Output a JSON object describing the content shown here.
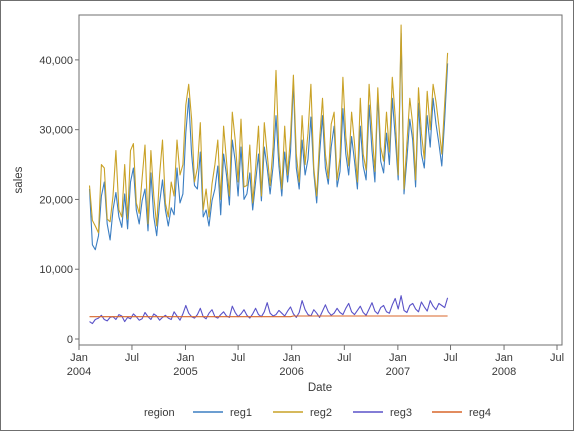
{
  "chart_data": {
    "type": "line",
    "xlabel": "Date",
    "ylabel": "sales",
    "ylim": [
      0,
      45000
    ],
    "grid": false,
    "legend": {
      "title": "region",
      "placement": "bottom"
    },
    "x_ticks": [
      {
        "date": "2004-01-01",
        "label": "Jan",
        "year": "2004"
      },
      {
        "date": "2004-07-01",
        "label": "Jul",
        "year": ""
      },
      {
        "date": "2005-01-01",
        "label": "Jan",
        "year": "2005"
      },
      {
        "date": "2005-07-01",
        "label": "Jul",
        "year": ""
      },
      {
        "date": "2006-01-01",
        "label": "Jan",
        "year": "2006"
      },
      {
        "date": "2006-07-01",
        "label": "Jul",
        "year": ""
      },
      {
        "date": "2007-01-01",
        "label": "Jan",
        "year": "2007"
      },
      {
        "date": "2007-07-01",
        "label": "Jul",
        "year": ""
      },
      {
        "date": "2008-01-01",
        "label": "Jan",
        "year": "2008"
      },
      {
        "date": "2008-07-01",
        "label": "Jul",
        "year": ""
      }
    ],
    "y_ticks": [
      {
        "value": 0,
        "label": "0"
      },
      {
        "value": 10000,
        "label": "10,000"
      },
      {
        "value": 20000,
        "label": "20,000"
      },
      {
        "value": 30000,
        "label": "30,000"
      },
      {
        "value": 40000,
        "label": "40,000"
      }
    ],
    "x": [
      "2004-02-06",
      "2004-02-16",
      "2004-02-26",
      "2004-03-08",
      "2004-03-18",
      "2004-03-28",
      "2004-04-07",
      "2004-04-17",
      "2004-04-27",
      "2004-05-07",
      "2004-05-17",
      "2004-05-27",
      "2004-06-06",
      "2004-06-16",
      "2004-06-26",
      "2004-07-06",
      "2004-07-16",
      "2004-07-26",
      "2004-08-05",
      "2004-08-15",
      "2004-08-25",
      "2004-09-04",
      "2004-09-14",
      "2004-09-24",
      "2004-10-04",
      "2004-10-14",
      "2004-10-24",
      "2004-11-03",
      "2004-11-13",
      "2004-11-23",
      "2004-12-03",
      "2004-12-13",
      "2004-12-23",
      "2005-01-02",
      "2005-01-12",
      "2005-01-22",
      "2005-02-01",
      "2005-02-11",
      "2005-02-21",
      "2005-03-03",
      "2005-03-13",
      "2005-03-23",
      "2005-04-02",
      "2005-04-12",
      "2005-04-22",
      "2005-05-02",
      "2005-05-12",
      "2005-05-22",
      "2005-06-01",
      "2005-06-11",
      "2005-06-21",
      "2005-07-01",
      "2005-07-11",
      "2005-07-21",
      "2005-07-31",
      "2005-08-10",
      "2005-08-20",
      "2005-08-30",
      "2005-09-09",
      "2005-09-19",
      "2005-09-29",
      "2005-10-09",
      "2005-10-19",
      "2005-10-29",
      "2005-11-08",
      "2005-11-18",
      "2005-11-28",
      "2005-12-08",
      "2005-12-18",
      "2005-12-28",
      "2006-01-07",
      "2006-01-17",
      "2006-01-27",
      "2006-02-06",
      "2006-02-16",
      "2006-02-26",
      "2006-03-08",
      "2006-03-18",
      "2006-03-28",
      "2006-04-07",
      "2006-04-17",
      "2006-04-27",
      "2006-05-07",
      "2006-05-17",
      "2006-05-27",
      "2006-06-06",
      "2006-06-16",
      "2006-06-26",
      "2006-07-06",
      "2006-07-16",
      "2006-07-26",
      "2006-08-05",
      "2006-08-15",
      "2006-08-25",
      "2006-09-04",
      "2006-09-14",
      "2006-09-24",
      "2006-10-04",
      "2006-10-14",
      "2006-10-24",
      "2006-11-03",
      "2006-11-13",
      "2006-11-23",
      "2006-12-03",
      "2006-12-13",
      "2006-12-23",
      "2007-01-02",
      "2007-01-12",
      "2007-01-22",
      "2007-02-01",
      "2007-02-11",
      "2007-02-21",
      "2007-03-03",
      "2007-03-13",
      "2007-03-23",
      "2007-04-02",
      "2007-04-12",
      "2007-04-22",
      "2007-05-02",
      "2007-05-12",
      "2007-05-22",
      "2007-06-01",
      "2007-06-11",
      "2007-06-21"
    ],
    "series": [
      {
        "name": "reg1",
        "color": "#3b7ec2",
        "values": [
          21500,
          13500,
          12800,
          14800,
          20500,
          22500,
          16500,
          14200,
          18500,
          21000,
          17500,
          16000,
          20800,
          15800,
          22500,
          24500,
          18500,
          16500,
          19800,
          21500,
          15500,
          23800,
          17500,
          14800,
          19500,
          22800,
          18500,
          16200,
          18800,
          17800,
          24500,
          19500,
          20800,
          29500,
          34500,
          26500,
          22000,
          21500,
          26800,
          17500,
          18500,
          16200,
          19800,
          21500,
          24800,
          17800,
          26500,
          23500,
          19200,
          28500,
          25500,
          20500,
          27500,
          20000,
          20800,
          23800,
          18500,
          22500,
          26500,
          19800,
          27500,
          24500,
          20800,
          24800,
          32000,
          24800,
          20500,
          26800,
          22500,
          26800,
          36800,
          24500,
          21500,
          28500,
          23500,
          25800,
          31800,
          23800,
          19500,
          26500,
          32000,
          24500,
          22200,
          27500,
          30500,
          21800,
          24000,
          33000,
          26500,
          23500,
          29000,
          25500,
          21500,
          30500,
          24800,
          22800,
          33500,
          27000,
          22500,
          35000,
          25500,
          23800,
          29500,
          25000,
          34500,
          29000,
          22800,
          43800,
          20800,
          25800,
          31500,
          28500,
          21800,
          33800,
          26500,
          24500,
          32000,
          27500,
          34500,
          30800,
          28000,
          24800,
          31500,
          39500
        ]
      },
      {
        "name": "reg2",
        "color": "#c9a227",
        "values": [
          22000,
          17000,
          16200,
          15200,
          25000,
          24500,
          17200,
          16800,
          20500,
          27000,
          18500,
          17500,
          25000,
          17200,
          27000,
          28000,
          19500,
          18000,
          23000,
          27800,
          16500,
          27000,
          20500,
          16200,
          23500,
          28500,
          19500,
          17500,
          22500,
          20500,
          28500,
          23500,
          25000,
          33500,
          36500,
          31500,
          22500,
          24500,
          31000,
          18500,
          21500,
          17500,
          22200,
          25000,
          28500,
          20000,
          30500,
          25500,
          20500,
          32500,
          28500,
          22500,
          31500,
          21800,
          22000,
          27800,
          19500,
          24500,
          30500,
          20500,
          31000,
          26500,
          22000,
          27500,
          38500,
          26800,
          21500,
          30500,
          23500,
          29000,
          37800,
          26500,
          22500,
          32000,
          25000,
          29500,
          36500,
          24500,
          20500,
          28500,
          34500,
          26500,
          23000,
          30800,
          32500,
          22800,
          26000,
          37500,
          29000,
          24800,
          32500,
          28000,
          22500,
          34500,
          26500,
          24200,
          36500,
          29800,
          24000,
          36000,
          27500,
          25500,
          32500,
          26800,
          37500,
          31800,
          23500,
          45000,
          21500,
          28000,
          34500,
          30800,
          22800,
          36000,
          29500,
          25800,
          35500,
          30000,
          36500,
          34000,
          30500,
          26500,
          33800,
          41000
        ]
      },
      {
        "name": "reg3",
        "color": "#5a52c8",
        "values": [
          2500,
          2200,
          2800,
          3000,
          3400,
          2800,
          2600,
          3100,
          3200,
          2800,
          3500,
          3300,
          2500,
          3100,
          2900,
          3600,
          3200,
          2700,
          2900,
          3800,
          3200,
          2800,
          3600,
          3300,
          2700,
          3100,
          3400,
          3000,
          2800,
          3900,
          3300,
          2700,
          3600,
          4800,
          3700,
          3200,
          3000,
          3500,
          4400,
          3200,
          2900,
          3700,
          4200,
          3200,
          3000,
          3500,
          3900,
          3300,
          3100,
          4700,
          3800,
          3200,
          3600,
          4200,
          3400,
          3000,
          3600,
          4400,
          3500,
          3200,
          3900,
          5200,
          3700,
          3300,
          3500,
          4100,
          3700,
          3300,
          4000,
          4600,
          3600,
          3100,
          3800,
          5500,
          4200,
          3500,
          3300,
          4200,
          3700,
          3100,
          4000,
          4900,
          3900,
          3400,
          3700,
          4400,
          3800,
          3500,
          4400,
          5100,
          3900,
          3500,
          4100,
          4700,
          3800,
          3400,
          4300,
          5200,
          4000,
          3600,
          4500,
          4800,
          3900,
          3700,
          4900,
          5800,
          4300,
          6200,
          4100,
          3800,
          4800,
          5100,
          4300,
          3900,
          5300,
          4600,
          4000,
          5500,
          4700,
          4200,
          5100,
          4800,
          4500,
          5900
        ]
      },
      {
        "name": "reg4",
        "color": "#d8662a",
        "values": [
          3200,
          3200,
          3200,
          3200,
          3200,
          3200,
          3200,
          3200,
          3200,
          3200,
          3200,
          3200,
          3200,
          3200,
          3200,
          3200,
          3200,
          3200,
          3200,
          3200,
          3200,
          3200,
          3200,
          3200,
          3200,
          3200,
          3200,
          3200,
          3200,
          3200,
          3200,
          3200,
          3200,
          3200,
          3200,
          3200,
          3200,
          3200,
          3200,
          3200,
          3200,
          3200,
          3200,
          3200,
          3200,
          3200,
          3200,
          3200,
          3200,
          3200,
          3200,
          3200,
          3200,
          3200,
          3200,
          3200,
          3200,
          3200,
          3200,
          3200,
          3200,
          3200,
          3200,
          3200,
          3200,
          3200,
          3200,
          3200,
          3200,
          3200,
          3300,
          3300,
          3300,
          3300,
          3300,
          3300,
          3300,
          3300,
          3300,
          3300,
          3300,
          3300,
          3300,
          3300,
          3300,
          3300,
          3300,
          3300,
          3300,
          3300,
          3300,
          3300,
          3300,
          3300,
          3300,
          3300,
          3300,
          3300,
          3300,
          3300,
          3300,
          3300,
          3300,
          3300,
          3300,
          3300,
          3300,
          3300,
          3300,
          3300,
          3300,
          3300,
          3300,
          3300,
          3300,
          3300,
          3300,
          3300,
          3300,
          3300,
          3300,
          3300,
          3300,
          3300
        ]
      }
    ]
  }
}
